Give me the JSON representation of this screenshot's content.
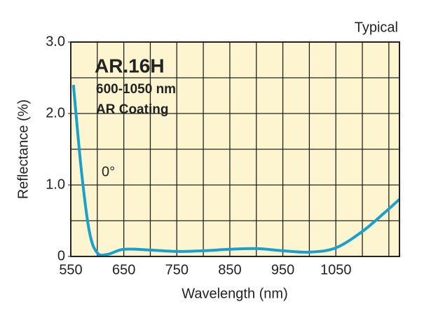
{
  "chart_data": {
    "type": "line",
    "title": "AR.16H",
    "subtitle": "600-1050 nm",
    "subtitle2": "AR Coating",
    "corner_note": "Typical",
    "annotation": "0°",
    "x_label": "Wavelength (nm)",
    "y_label": "Reflectance (%)",
    "xlim": [
      550,
      1170
    ],
    "ylim": [
      0,
      3
    ],
    "xticks": [
      550,
      650,
      750,
      850,
      950,
      1050
    ],
    "yticks": [
      0,
      {
        "value": 1,
        "label": "1.0"
      },
      {
        "value": 2,
        "label": "2.0"
      },
      {
        "value": 3,
        "label": "3.0"
      }
    ],
    "xgrid": [
      600,
      650,
      700,
      750,
      800,
      850,
      900,
      950,
      1000,
      1050,
      1100,
      1150
    ],
    "ygrid": [
      0.5,
      1,
      1.5,
      2,
      2.5
    ],
    "grid": true,
    "background": "#fdf5cf",
    "series": [
      {
        "color": "#1aa0cc",
        "x": [
          555,
          570,
          585,
          600,
          620,
          650,
          700,
          750,
          800,
          850,
          900,
          950,
          1000,
          1050,
          1100,
          1140,
          1170
        ],
        "values": [
          2.4,
          1.2,
          0.35,
          0.05,
          0.03,
          0.1,
          0.09,
          0.07,
          0.08,
          0.1,
          0.11,
          0.08,
          0.06,
          0.12,
          0.35,
          0.6,
          0.8
        ]
      }
    ]
  }
}
